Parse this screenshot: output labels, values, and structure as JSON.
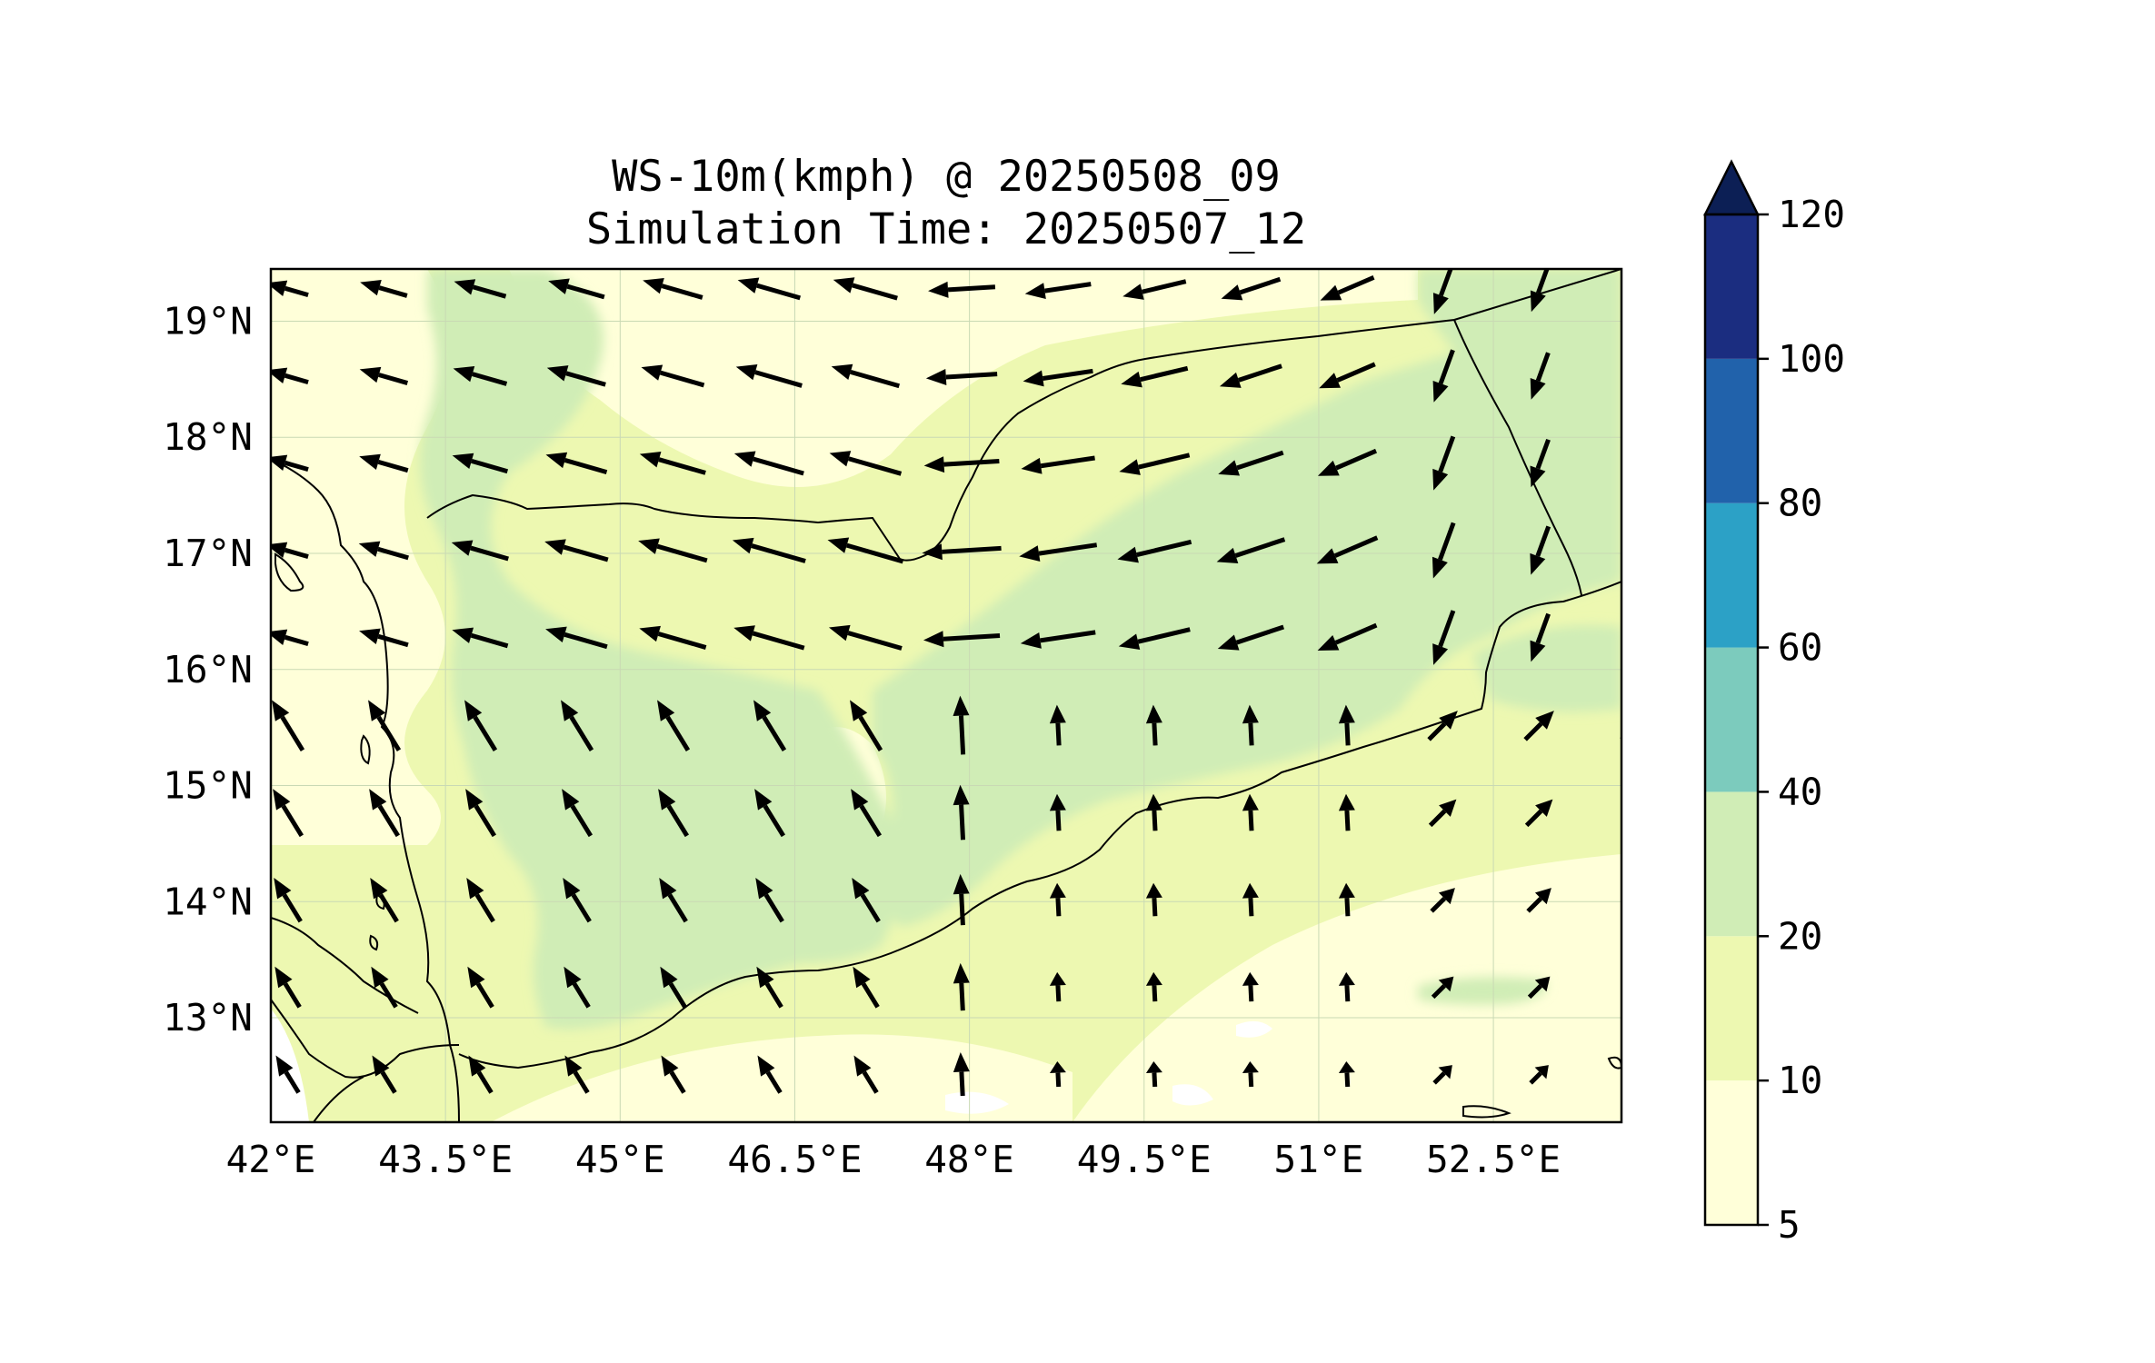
{
  "title": {
    "line1": "WS-10m(kmph) @ 20250508_09",
    "line2": "Simulation Time: 20250507_12"
  },
  "map": {
    "lon_range": [
      42,
      53.6
    ],
    "lat_range": [
      12.1,
      19.45
    ],
    "x_ticks": [
      {
        "value": 42,
        "label": "42°E"
      },
      {
        "value": 43.5,
        "label": "43.5°E"
      },
      {
        "value": 45,
        "label": "45°E"
      },
      {
        "value": 46.5,
        "label": "46.5°E"
      },
      {
        "value": 48,
        "label": "48°E"
      },
      {
        "value": 49.5,
        "label": "49.5°E"
      },
      {
        "value": 51,
        "label": "51°E"
      },
      {
        "value": 52.5,
        "label": "52.5°E"
      }
    ],
    "y_ticks": [
      {
        "value": 19,
        "label": "19°N"
      },
      {
        "value": 18,
        "label": "18°N"
      },
      {
        "value": 17,
        "label": "17°N"
      },
      {
        "value": 16,
        "label": "16°N"
      },
      {
        "value": 15,
        "label": "15°N"
      },
      {
        "value": 14,
        "label": "14°N"
      },
      {
        "value": 13,
        "label": "13°N"
      }
    ],
    "grid": true
  },
  "colorbar": {
    "levels": [
      {
        "label": "5",
        "value": 5
      },
      {
        "label": "10",
        "value": 10
      },
      {
        "label": "20",
        "value": 20
      },
      {
        "label": "40",
        "value": 40
      },
      {
        "label": "60",
        "value": 60
      },
      {
        "label": "80",
        "value": 80
      },
      {
        "label": "100",
        "value": 100
      },
      {
        "label": "120",
        "value": 120
      }
    ],
    "colors": [
      "#ffffd9",
      "#edf8b1",
      "#d0edb6",
      "#7ccbbd",
      "#2ca1c6",
      "#2162ab",
      "#1b2d80"
    ],
    "extend_color": "#0c1f55",
    "extend": "max"
  },
  "colors": {
    "land_base": "#edf8b1",
    "calm": "#ffffd9",
    "moderate": "#d0edb6",
    "coast_line": "#000000",
    "arrow": "#000000"
  }
}
